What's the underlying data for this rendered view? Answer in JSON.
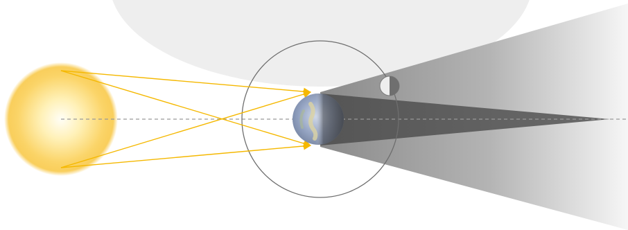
{
  "diagram": {
    "kind": "lunar-eclipse-geometry",
    "bodies": [
      "sun",
      "earth",
      "moon"
    ],
    "regions": [
      "penumbra",
      "umbra"
    ],
    "colors": {
      "background": "#ffffff",
      "sun_core": "#fffdf0",
      "sun_edge": "#f8c640",
      "light_ray": "#f5b800",
      "umbra": "#5a5a5a",
      "penumbra_dark": "#8a8a8a",
      "penumbra_light": "#f4f4f4",
      "axis_line": "#999999",
      "moon_orbit": "#6e6e6e",
      "backdrop_disc": "#eeeeee"
    }
  }
}
